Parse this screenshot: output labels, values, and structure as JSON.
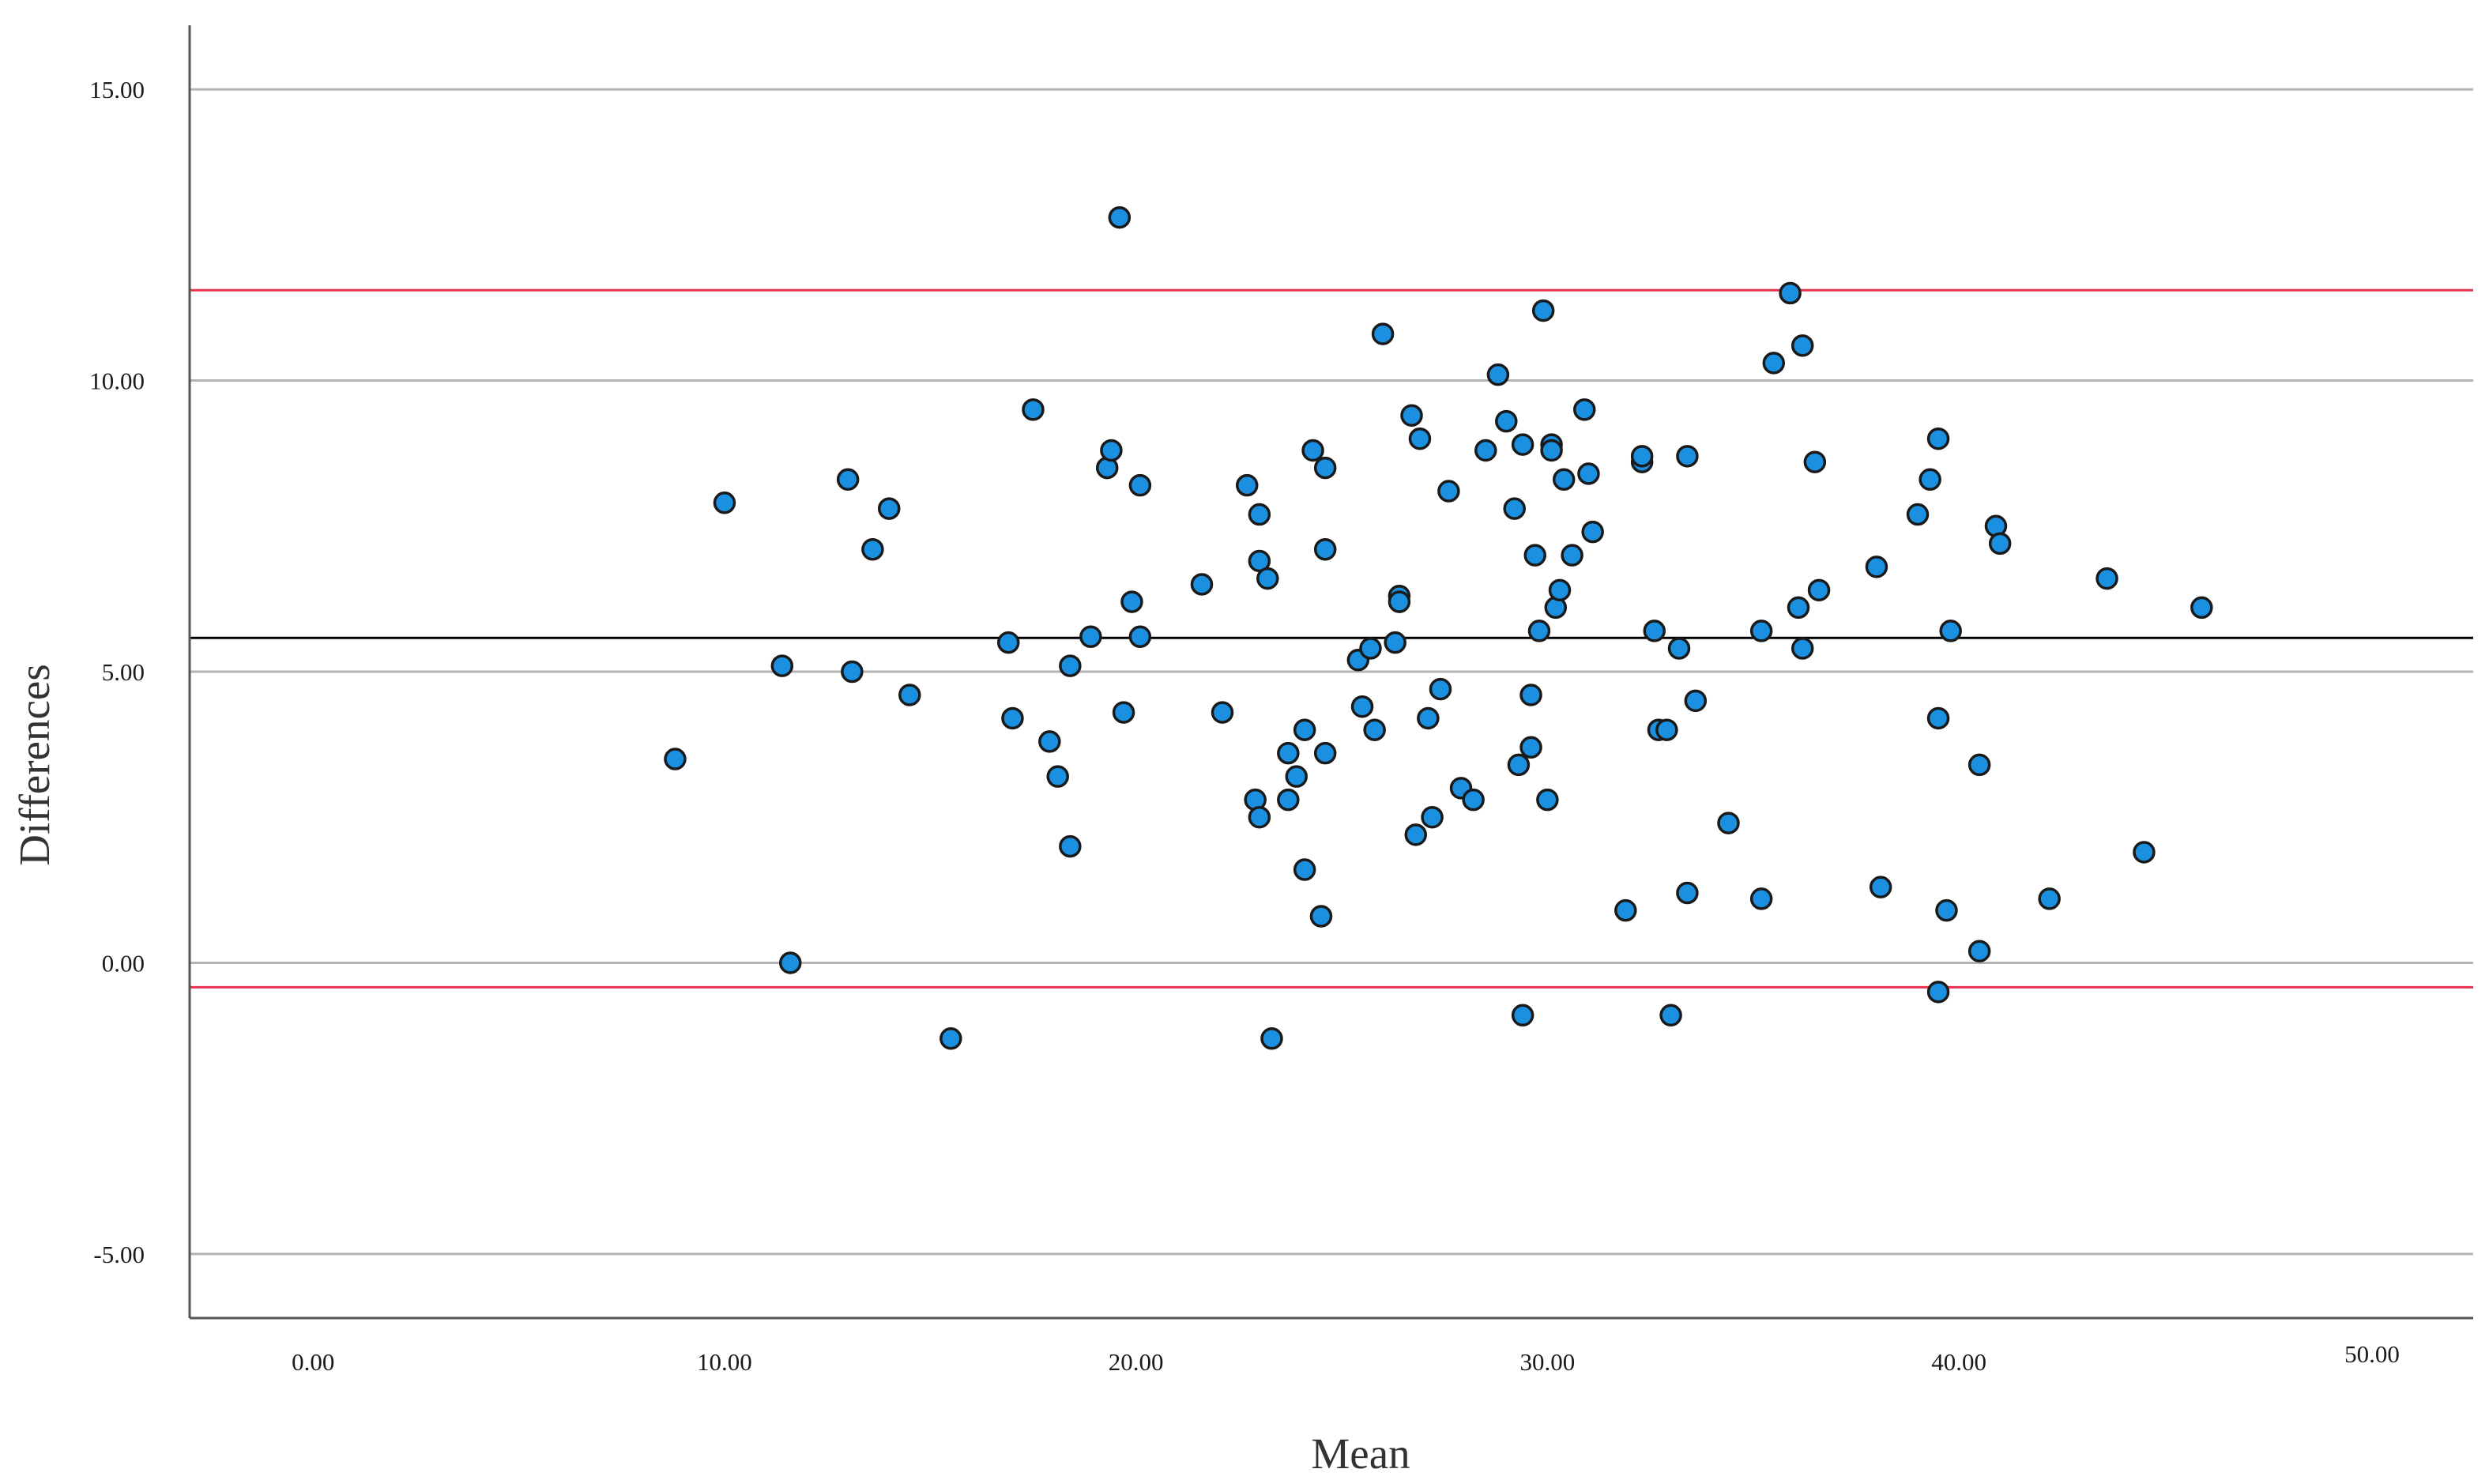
{
  "chart_data": {
    "type": "scatter",
    "title": "",
    "xlabel": "Mean",
    "ylabel": "Differences",
    "xlim": [
      -3,
      52.5
    ],
    "ylim": [
      -6.1,
      16.1
    ],
    "x_ticks": [
      {
        "value": 0,
        "label": "0.00"
      },
      {
        "value": 10,
        "label": "10.00"
      },
      {
        "value": 20,
        "label": "20.00"
      },
      {
        "value": 30,
        "label": "30.00"
      },
      {
        "value": 40,
        "label": "40.00"
      },
      {
        "value": 50,
        "label": "50.00"
      }
    ],
    "y_ticks": [
      {
        "value": -5,
        "label": "-5.00"
      },
      {
        "value": 0,
        "label": "0.00"
      },
      {
        "value": 5,
        "label": "5.00"
      },
      {
        "value": 10,
        "label": "10.00"
      },
      {
        "value": 15,
        "label": "15.00"
      }
    ],
    "grid": "horizontal",
    "legend": "none",
    "reference_lines": [
      {
        "value": 11.55,
        "color": "#e8324f"
      },
      {
        "value": 5.58,
        "color": "#000000"
      },
      {
        "value": -0.42,
        "color": "#e8324f"
      }
    ],
    "marker_color": "#1b8fe0",
    "marker_edge_color": "#1a1a1a",
    "points": [
      [
        8.8,
        3.5
      ],
      [
        10.0,
        7.9
      ],
      [
        11.4,
        5.1
      ],
      [
        11.6,
        0.0
      ],
      [
        13.0,
        8.3
      ],
      [
        13.1,
        5.0
      ],
      [
        13.6,
        7.1
      ],
      [
        14.0,
        7.8
      ],
      [
        14.5,
        4.6
      ],
      [
        15.5,
        -1.3
      ],
      [
        16.9,
        5.5
      ],
      [
        17.0,
        4.2
      ],
      [
        17.5,
        9.5
      ],
      [
        17.9,
        3.8
      ],
      [
        18.1,
        3.2
      ],
      [
        18.4,
        2.0
      ],
      [
        18.4,
        5.1
      ],
      [
        18.9,
        5.6
      ],
      [
        19.3,
        8.5
      ],
      [
        19.4,
        8.8
      ],
      [
        19.6,
        12.8
      ],
      [
        19.7,
        4.3
      ],
      [
        19.9,
        6.2
      ],
      [
        20.1,
        5.6
      ],
      [
        20.1,
        8.2
      ],
      [
        21.6,
        6.5
      ],
      [
        22.1,
        4.3
      ],
      [
        22.7,
        8.2
      ],
      [
        23.0,
        6.9
      ],
      [
        23.0,
        7.7
      ],
      [
        23.2,
        6.6
      ],
      [
        22.9,
        2.8
      ],
      [
        23.0,
        2.5
      ],
      [
        23.3,
        -1.3
      ],
      [
        23.7,
        3.6
      ],
      [
        23.7,
        2.8
      ],
      [
        23.9,
        3.2
      ],
      [
        24.1,
        4.0
      ],
      [
        24.1,
        1.6
      ],
      [
        24.3,
        8.8
      ],
      [
        24.5,
        0.8
      ],
      [
        24.6,
        8.5
      ],
      [
        24.6,
        7.1
      ],
      [
        24.6,
        3.6
      ],
      [
        25.4,
        5.2
      ],
      [
        25.5,
        4.4
      ],
      [
        25.7,
        5.4
      ],
      [
        25.8,
        4.0
      ],
      [
        26.0,
        10.8
      ],
      [
        26.3,
        5.5
      ],
      [
        26.4,
        6.3
      ],
      [
        26.4,
        6.2
      ],
      [
        26.7,
        9.4
      ],
      [
        26.8,
        2.2
      ],
      [
        26.9,
        9.0
      ],
      [
        27.1,
        4.2
      ],
      [
        27.2,
        2.5
      ],
      [
        27.4,
        4.7
      ],
      [
        27.6,
        8.1
      ],
      [
        27.9,
        3.0
      ],
      [
        28.2,
        2.8
      ],
      [
        28.5,
        8.8
      ],
      [
        28.8,
        10.1
      ],
      [
        29.0,
        9.3
      ],
      [
        29.2,
        7.8
      ],
      [
        29.3,
        3.4
      ],
      [
        29.4,
        8.9
      ],
      [
        29.4,
        -0.9
      ],
      [
        29.6,
        3.7
      ],
      [
        29.6,
        4.6
      ],
      [
        29.7,
        7.0
      ],
      [
        29.8,
        5.7
      ],
      [
        29.9,
        11.2
      ],
      [
        30.0,
        2.8
      ],
      [
        30.1,
        8.9
      ],
      [
        30.1,
        8.8
      ],
      [
        30.2,
        6.1
      ],
      [
        30.3,
        6.4
      ],
      [
        30.4,
        8.3
      ],
      [
        30.6,
        7.0
      ],
      [
        30.9,
        9.5
      ],
      [
        31.0,
        8.4
      ],
      [
        31.1,
        7.4
      ],
      [
        31.9,
        0.9
      ],
      [
        32.3,
        8.6
      ],
      [
        32.3,
        8.7
      ],
      [
        32.6,
        5.7
      ],
      [
        32.7,
        4.0
      ],
      [
        32.9,
        4.0
      ],
      [
        33.0,
        -0.9
      ],
      [
        33.2,
        5.4
      ],
      [
        33.4,
        8.7
      ],
      [
        33.4,
        1.2
      ],
      [
        33.6,
        4.5
      ],
      [
        34.4,
        2.4
      ],
      [
        35.2,
        5.7
      ],
      [
        35.2,
        1.1
      ],
      [
        35.5,
        10.3
      ],
      [
        35.9,
        11.5
      ],
      [
        36.1,
        6.1
      ],
      [
        36.2,
        10.6
      ],
      [
        36.2,
        5.4
      ],
      [
        36.5,
        8.6
      ],
      [
        36.6,
        6.4
      ],
      [
        38.0,
        6.8
      ],
      [
        38.1,
        1.3
      ],
      [
        39.0,
        7.7
      ],
      [
        39.3,
        8.3
      ],
      [
        39.5,
        9.0
      ],
      [
        39.5,
        4.2
      ],
      [
        39.5,
        -0.5
      ],
      [
        39.7,
        0.9
      ],
      [
        39.8,
        5.7
      ],
      [
        40.5,
        3.4
      ],
      [
        40.5,
        0.2
      ],
      [
        40.9,
        7.5
      ],
      [
        41.0,
        7.2
      ],
      [
        42.2,
        1.1
      ],
      [
        43.6,
        6.6
      ],
      [
        44.5,
        1.9
      ],
      [
        45.9,
        6.1
      ]
    ]
  }
}
